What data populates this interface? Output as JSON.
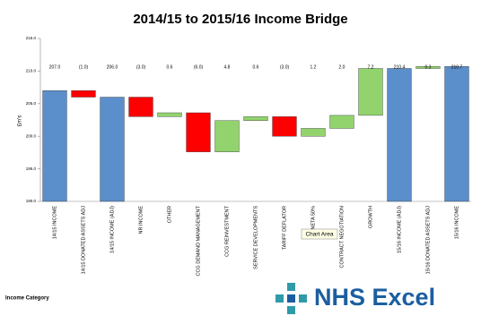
{
  "chart_data": {
    "type": "waterfall",
    "title": "2014/15 to 2015/16 Income Bridge",
    "y_label": "£m's",
    "x_label": "Income Category",
    "categories": [
      "14/15 INCOME",
      "14/15 DONATED ASSETS ADJ",
      "14/15 INCOME (ADJ)",
      "NR INCOME",
      "OTHER",
      "CCG DEMAND MANAGEMENT",
      "CCG REINVESTMENT",
      "SERVICE DEVELOPMENTS",
      "TARIFF DEFLATOR",
      "NETA 50%",
      "CONTRACT NEGOTIATION",
      "GROWTH",
      "15/16 INCOME (ADJ)",
      "15/16 DONATED ASSETS ADJ",
      "15/16 INCOME"
    ],
    "values": [
      207.0,
      -1.0,
      206.0,
      -3.0,
      0.6,
      -6.0,
      4.8,
      0.6,
      -3.0,
      1.2,
      2.0,
      7.2,
      210.4,
      0.3,
      210.7
    ],
    "value_labels": [
      "207.0",
      "(1.0)",
      "206.0",
      "(3.0)",
      "0.6",
      "(6.0)",
      "4.8",
      "0.6",
      "(3.0)",
      "1.2",
      "2.0",
      "7.2",
      "210.4",
      "0.3",
      "210.7"
    ],
    "measure": [
      "total",
      "relative",
      "total",
      "relative",
      "relative",
      "relative",
      "relative",
      "relative",
      "relative",
      "relative",
      "relative",
      "relative",
      "total",
      "relative",
      "total"
    ],
    "colors": {
      "total": "#5b8fcb",
      "increase": "#92d36e",
      "decrease": "#ff0000"
    },
    "ylim": [
      190,
      215
    ],
    "yticks": [
      {
        "value": 190,
        "label": "190.0"
      },
      {
        "value": 195,
        "label": "195.0"
      },
      {
        "value": 200,
        "label": "200.0"
      },
      {
        "value": 205,
        "label": "205.0"
      },
      {
        "value": 210,
        "label": "210.0"
      },
      {
        "value": 215,
        "label": "215.0"
      }
    ],
    "grid": false
  },
  "tooltip": "Chart Area",
  "logo": "NHS Excel"
}
